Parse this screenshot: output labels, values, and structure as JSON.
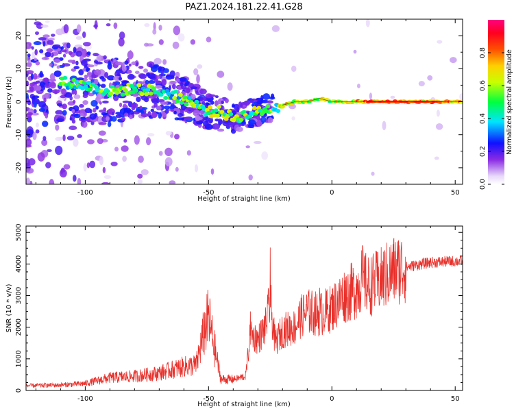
{
  "figure": {
    "title": "PAZ1.2024.181.22.41.G28"
  },
  "chart_data": [
    {
      "type": "heatmap",
      "title": "PAZ1.2024.181.22.41.G28",
      "xlabel": "Height of straight line (km)",
      "ylabel": "Frequency (Hz)",
      "xlim": [
        -124,
        53
      ],
      "ylim": [
        -25,
        25
      ],
      "xticks": [
        -100,
        -50,
        0,
        50
      ],
      "yticks": [
        -20,
        -10,
        0,
        10,
        20
      ],
      "colorbar": {
        "label": "Normalized spectral amplitude",
        "range": [
          0.0,
          1.0
        ],
        "ticks": [
          0.0,
          0.2,
          0.4,
          0.6,
          0.8
        ],
        "colormap": "rainbow (white-violet-blue-cyan-green-yellow-orange-red-magenta)"
      },
      "ridge": {
        "x": [
          -124,
          -110,
          -100,
          -90,
          -80,
          -70,
          -60,
          -55,
          -50,
          -45,
          -40,
          -35,
          -30,
          -25,
          -20,
          -15,
          -10,
          -5,
          0,
          10,
          20,
          30,
          40,
          53
        ],
        "y": [
          7,
          6,
          5,
          3,
          4,
          3,
          1,
          -1,
          -3,
          -3,
          -5,
          -4,
          -3,
          -2,
          -1,
          0,
          0,
          1,
          0,
          0,
          0,
          0,
          0,
          0
        ]
      }
    },
    {
      "type": "line",
      "xlabel": "Height of straight line (km)",
      "ylabel": "SNR (10 * v/v)",
      "xlim": [
        -124,
        53
      ],
      "ylim": [
        0,
        5200
      ],
      "xticks": [
        -100,
        -50,
        0,
        50
      ],
      "yticks": [
        0,
        1000,
        2000,
        3000,
        4000,
        5000
      ],
      "color": "#e8302a",
      "x": [
        -124,
        -110,
        -100,
        -90,
        -80,
        -70,
        -60,
        -55,
        -52,
        -50,
        -48,
        -45,
        -40,
        -35,
        -33,
        -30,
        -27,
        -25,
        -23,
        -20,
        -15,
        -13,
        -10,
        -5,
        0,
        5,
        10,
        12,
        15,
        20,
        25,
        30,
        40,
        53
      ],
      "y": [
        150,
        170,
        220,
        400,
        450,
        550,
        750,
        800,
        1800,
        2300,
        1500,
        350,
        350,
        450,
        1800,
        1600,
        2000,
        2800,
        1500,
        1900,
        2000,
        2300,
        2500,
        2400,
        2600,
        3000,
        3200,
        3500,
        3300,
        3500,
        3800,
        3900,
        4050,
        4100
      ],
      "spikes": [
        {
          "x": -50,
          "y": 2700
        },
        {
          "x": -33,
          "y": 2500
        },
        {
          "x": -25,
          "y": 4520
        },
        {
          "x": -5,
          "y": 3250
        },
        {
          "x": 12.5,
          "y": 4580
        }
      ]
    }
  ]
}
